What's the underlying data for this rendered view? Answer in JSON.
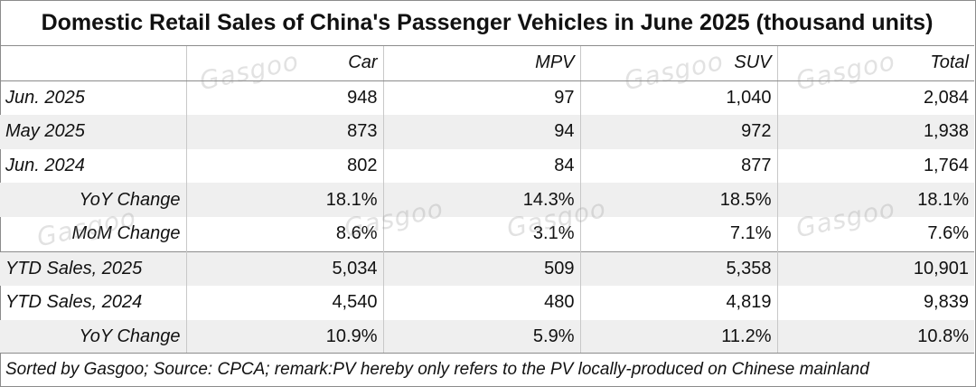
{
  "title": "Domestic Retail Sales of China's Passenger Vehicles in June 2025 (thousand units)",
  "watermark": "Gasgoo",
  "chart_data": {
    "type": "table",
    "title": "Domestic Retail Sales of China's Passenger Vehicles in June 2025 (thousand units)",
    "columns": [
      "",
      "Car",
      "MPV",
      "SUV",
      "Total"
    ],
    "rows": [
      {
        "label": "Jun. 2025",
        "values": [
          "948",
          "97",
          "1,040",
          "2,084"
        ]
      },
      {
        "label": "May 2025",
        "values": [
          "873",
          "94",
          "972",
          "1,938"
        ]
      },
      {
        "label": "Jun. 2024",
        "values": [
          "802",
          "84",
          "877",
          "1,764"
        ]
      },
      {
        "label": "YoY Change",
        "values": [
          "18.1%",
          "14.3%",
          "18.5%",
          "18.1%"
        ]
      },
      {
        "label": "MoM Change",
        "values": [
          "8.6%",
          "3.1%",
          "7.1%",
          "7.6%"
        ]
      },
      {
        "label": "YTD Sales, 2025",
        "values": [
          "5,034",
          "509",
          "5,358",
          "10,901"
        ]
      },
      {
        "label": "YTD Sales, 2024",
        "values": [
          "4,540",
          "480",
          "4,819",
          "9,839"
        ]
      },
      {
        "label": "YoY Change",
        "values": [
          "10.9%",
          "5.9%",
          "11.2%",
          "10.8%"
        ]
      }
    ]
  },
  "footer": "Sorted by Gasgoo; Source: CPCA; remark:PV hereby only refers to the PV locally-produced on Chinese mainland"
}
